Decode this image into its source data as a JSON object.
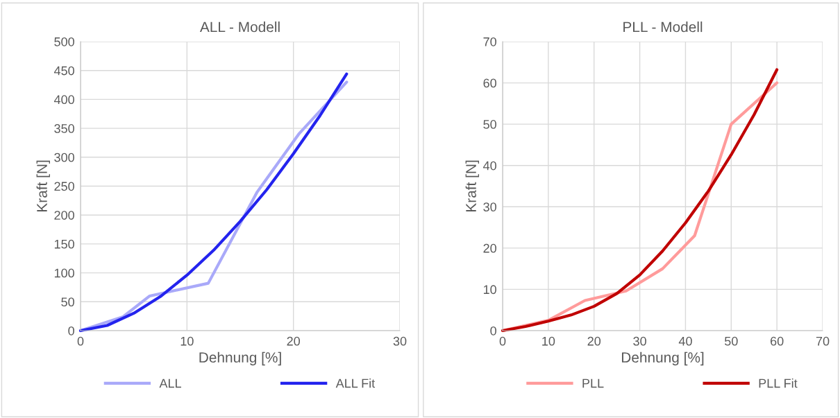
{
  "chart_data": [
    {
      "type": "line",
      "title": "ALL - Modell",
      "xlabel": "Dehnung [%]",
      "ylabel": "Kraft [N]",
      "xlim": [
        0,
        30
      ],
      "xticks": [
        0,
        10,
        20,
        30
      ],
      "ylim": [
        0,
        500
      ],
      "yticks": [
        0,
        50,
        100,
        150,
        200,
        250,
        300,
        350,
        400,
        450,
        500
      ],
      "grid": true,
      "legend": "bottom",
      "marker": "none",
      "line_style": "solid",
      "series": [
        {
          "name": "ALL",
          "color": "#a9a9f9",
          "x": [
            0,
            4,
            6.5,
            12,
            16.6,
            20.5,
            25
          ],
          "values": [
            0,
            24,
            60,
            82,
            240,
            340,
            430
          ]
        },
        {
          "name": "ALL Fit",
          "color": "#2323ee",
          "x": [
            0,
            2.5,
            5,
            7.5,
            10,
            12.5,
            15,
            17.5,
            20,
            22.5,
            25
          ],
          "values": [
            0,
            9,
            30,
            59,
            96,
            139,
            189,
            244,
            306,
            372,
            444
          ]
        }
      ]
    },
    {
      "type": "line",
      "title": "PLL - Modell",
      "xlabel": "Dehnung [%]",
      "ylabel": "Kraft [N]",
      "xlim": [
        0,
        70
      ],
      "xticks": [
        0,
        10,
        20,
        30,
        40,
        50,
        60,
        70
      ],
      "ylim": [
        0,
        70
      ],
      "yticks": [
        0,
        10,
        20,
        30,
        40,
        50,
        60,
        70
      ],
      "grid": true,
      "legend": "bottom",
      "marker": "none",
      "line_style": "solid",
      "series": [
        {
          "name": "PLL",
          "color": "#ff9b9b",
          "x": [
            0,
            10,
            18,
            27,
            35,
            42,
            50,
            60
          ],
          "values": [
            0,
            2.5,
            7.3,
            9.6,
            15,
            23,
            50,
            60
          ]
        },
        {
          "name": "PLL Fit",
          "color": "#c00000",
          "x": [
            0,
            5,
            10,
            15,
            20,
            25,
            30,
            35,
            40,
            45,
            50,
            55,
            60
          ],
          "values": [
            0,
            1,
            2.3,
            3.8,
            5.9,
            9,
            13.5,
            19.3,
            26.1,
            33.8,
            42.6,
            52.3,
            63.2
          ]
        }
      ]
    }
  ]
}
